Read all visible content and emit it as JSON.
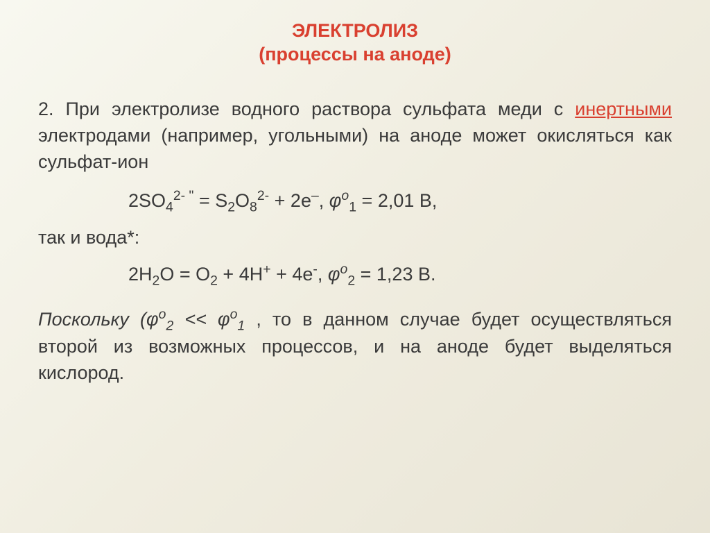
{
  "title": {
    "line1": "ЭЛЕКТРОЛИЗ",
    "line2": "(процессы на аноде)"
  },
  "colors": {
    "title_color": "#d94030",
    "body_color": "#3a3a3a",
    "accent_color": "#d94030",
    "background_start": "#f8f8f0",
    "background_end": "#e8e4d5"
  },
  "typography": {
    "title_fontsize_pt": 20,
    "body_fontsize_pt": 20,
    "font_family": "Arial"
  },
  "paragraph1": {
    "lead": "2. При электролизе водного раствора сульфата меди с ",
    "accent_word": "инертными",
    "tail": " электродами (например, угольными) на аноде может окисляться как сульфат-ион"
  },
  "equation1": {
    "text_lhs": "2SO",
    "so4_sub": "4",
    "so4_sup": "2- \"",
    "eq_mid": " = S",
    "s2_sub": "2",
    "o_text": "O",
    "o8_sub": "8",
    "o8_sup": "2-",
    "plus_part": " + 2e",
    "e_sup": "–",
    "comma": ",   ",
    "phi_label": "φ",
    "phi_sup": "o",
    "phi_sub": "1",
    "value": " = 2,01 В,"
  },
  "middle_text": " так и вода*:",
  "equation2": {
    "lhs": "2H",
    "h2_sub": "2",
    "o1": "O = O",
    "o2_sub": "2",
    "plus1": " + 4H",
    "h_sup": "+",
    "plus2": " + 4e",
    "e_sup": "-",
    "comma": ",   ",
    "phi_label": "φ",
    "phi_sup": "o",
    "phi_sub": "2",
    "value": " = 1,23 В."
  },
  "paragraph2": {
    "lead": "Поскольку (",
    "phi1": "φ",
    "phi1_sup": "o",
    "phi1_sub": "2",
    "cmp": " << ",
    "phi2": "φ",
    "phi2_sup": "o",
    "phi2_sub": "1",
    "tail": " , то в данном случае будет осуществляться второй из возможных процессов, и на аноде будет выделяться кислород."
  }
}
